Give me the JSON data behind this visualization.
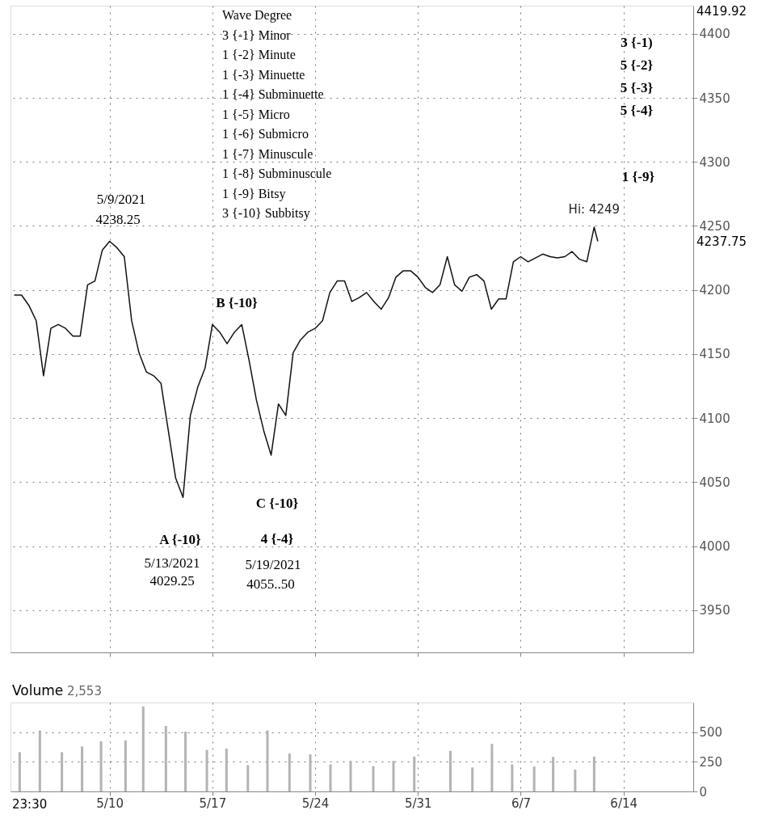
{
  "chart_data": [
    {
      "type": "line",
      "tick_labels": "y",
      "grid": true,
      "line_style": "solid",
      "x": [
        "2021-05-03T12:00",
        "2021-05-04T00:00",
        "2021-05-04T12:00",
        "2021-05-05T00:00",
        "2021-05-05T12:00",
        "2021-05-06T00:00",
        "2021-05-06T12:00",
        "2021-05-07T00:00",
        "2021-05-07T12:00",
        "2021-05-08T00:00",
        "2021-05-08T12:00",
        "2021-05-09T00:00",
        "2021-05-09T12:00",
        "2021-05-10T00:00",
        "2021-05-10T12:00",
        "2021-05-11T00:00",
        "2021-05-11T12:00",
        "2021-05-12T00:00",
        "2021-05-12T12:00",
        "2021-05-13T00:00",
        "2021-05-13T12:00",
        "2021-05-14T00:00",
        "2021-05-14T12:00",
        "2021-05-15T00:00",
        "2021-05-15T12:00",
        "2021-05-16T00:00",
        "2021-05-16T12:00",
        "2021-05-17T00:00",
        "2021-05-17T12:00",
        "2021-05-18T00:00",
        "2021-05-18T12:00",
        "2021-05-19T00:00",
        "2021-05-19T12:00",
        "2021-05-20T00:00",
        "2021-05-20T12:00",
        "2021-05-21T00:00",
        "2021-05-21T12:00",
        "2021-05-22T00:00",
        "2021-05-22T12:00",
        "2021-05-23T00:00",
        "2021-05-23T12:00",
        "2021-05-24T00:00",
        "2021-05-24T12:00",
        "2021-05-25T00:00",
        "2021-05-25T12:00",
        "2021-05-26T00:00",
        "2021-05-26T12:00",
        "2021-05-27T00:00",
        "2021-05-27T12:00",
        "2021-05-28T00:00",
        "2021-05-28T12:00",
        "2021-05-29T00:00",
        "2021-05-29T12:00",
        "2021-05-30T00:00",
        "2021-05-30T12:00",
        "2021-05-31T00:00",
        "2021-05-31T12:00",
        "2021-06-01T00:00",
        "2021-06-01T12:00",
        "2021-06-02T00:00",
        "2021-06-02T12:00",
        "2021-06-03T00:00",
        "2021-06-03T12:00",
        "2021-06-04T00:00",
        "2021-06-04T12:00",
        "2021-06-05T00:00",
        "2021-06-05T12:00",
        "2021-06-06T00:00",
        "2021-06-06T12:00",
        "2021-06-07T00:00",
        "2021-06-07T12:00",
        "2021-06-08T00:00",
        "2021-06-08T12:00",
        "2021-06-09T00:00",
        "2021-06-09T12:00",
        "2021-06-10T00:00",
        "2021-06-10T12:00",
        "2021-06-11T00:00",
        "2021-06-11T12:00",
        "2021-06-12T00:00",
        "2021-06-12T06:00"
      ],
      "series": [
        {
          "color": "#111111",
          "values": [
            4196,
            4196,
            4188,
            4176,
            4133,
            4170,
            4173,
            4170,
            4164,
            4164,
            4204,
            4207,
            4231,
            4238,
            4233,
            4226,
            4176,
            4151,
            4136,
            4133,
            4127,
            4090,
            4053,
            4038,
            4102,
            4124,
            4139,
            4173,
            4167,
            4158,
            4167,
            4173,
            4145,
            4114,
            4090,
            4071,
            4111,
            4102,
            4151,
            4161,
            4167,
            4170,
            4176,
            4198,
            4207,
            4207,
            4191,
            4194,
            4198,
            4191,
            4185,
            4194,
            4210,
            4215,
            4215,
            4210,
            4202,
            4198,
            4204,
            4226,
            4204,
            4199,
            4210,
            4212,
            4207,
            4185,
            4193,
            4193,
            4222,
            4226,
            4222,
            4225,
            4228,
            4226,
            4225,
            4226,
            4230,
            4224,
            4222,
            4249,
            4238
          ]
        }
      ],
      "xlim": [
        "2021-05-03T06:00",
        "2021-06-18T18:00"
      ],
      "xticks": [
        {
          "value": "2021-05-10T00:00",
          "label": null
        },
        {
          "value": "2021-05-17T00:00",
          "label": null
        },
        {
          "value": "2021-05-24T00:00",
          "label": null
        },
        {
          "value": "2021-05-31T00:00",
          "label": null
        },
        {
          "value": "2021-06-07T00:00",
          "label": null
        },
        {
          "value": "2021-06-14T00:00",
          "label": null
        }
      ],
      "ylim": [
        3917,
        4422
      ],
      "yticks": [
        3950,
        4000,
        4050,
        4100,
        4150,
        4200,
        4250,
        4300,
        4350,
        4400
      ],
      "annotations": [
        "Wave Degree",
        "3 {-1} Minor",
        "1 {-2} Minute",
        "1 {-3} Minuette",
        "1 {-4} Subminuette",
        "1 {-5} Micro",
        "1 {-6} Submicro",
        "1 {-7} Minuscule",
        "1 {-8} Subminuscule",
        "1 {-9} Bitsy",
        "3 {-10} Subbitsy",
        "5/9/2021",
        "4238.25",
        "B {-10}",
        "A {-10}",
        "5/13/2021",
        "4029.25",
        "C  {-10}",
        "4 {-4}",
        "5/19/2021",
        "4055..50",
        "3 {-1)",
        "5 {-2}",
        "5 {-3}",
        "5 {-4}",
        "1 {-9}",
        {
          "text": "Hi: 4249",
          "x": "2021-06-12T00:00",
          "y": 4249
        },
        "4237.75",
        "4419.92"
      ]
    },
    {
      "type": "bar",
      "title": "Volume",
      "grid": true,
      "x": [
        "2021-05-03T21:00",
        "2021-05-05T06:00",
        "2021-05-06T18:00",
        "2021-05-08T03:00",
        "2021-05-09T10:00",
        "2021-05-11T02:00",
        "2021-05-12T07:00",
        "2021-05-13T20:00",
        "2021-05-15T04:00",
        "2021-05-16T15:00",
        "2021-05-17T23:00",
        "2021-05-19T10:00",
        "2021-05-20T18:00",
        "2021-05-22T06:00",
        "2021-05-23T16:00",
        "2021-05-25T01:00",
        "2021-05-26T10:00",
        "2021-05-27T23:00",
        "2021-05-29T08:00",
        "2021-05-30T18:00",
        "2021-06-02T05:00",
        "2021-06-03T17:00",
        "2021-06-05T01:00",
        "2021-06-06T10:00",
        "2021-06-07T22:00",
        "2021-06-09T05:00",
        "2021-06-10T17:00",
        "2021-06-12T00:00"
      ],
      "values": [
        331,
        515,
        331,
        379,
        423,
        430,
        717,
        552,
        504,
        350,
        361,
        221,
        515,
        320,
        313,
        228,
        258,
        213,
        258,
        294,
        342,
        202,
        401,
        228,
        210,
        291,
        184,
        294
      ],
      "color": "#b3b3b3",
      "xlim": [
        "2021-05-03T06:00",
        "2021-06-18T18:00"
      ],
      "xticks": [
        {
          "value": "2021-05-10T00:00",
          "label": "5/10"
        },
        {
          "value": "2021-05-17T00:00",
          "label": "5/17"
        },
        {
          "value": "2021-05-24T00:00",
          "label": "5/24"
        },
        {
          "value": "2021-05-31T00:00",
          "label": "5/31"
        },
        {
          "value": "2021-06-07T00:00",
          "label": "6/7"
        },
        {
          "value": "2021-06-14T00:00",
          "label": "6/14"
        }
      ],
      "ylim": [
        0,
        750
      ],
      "yticks": [
        0,
        250,
        500
      ],
      "annotations": [
        "2,553",
        "23:30"
      ]
    }
  ]
}
